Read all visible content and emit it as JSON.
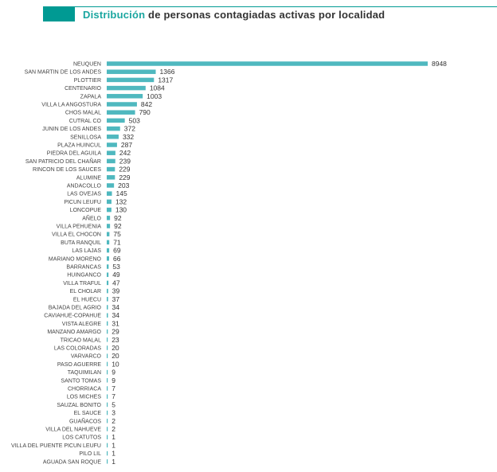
{
  "header": {
    "title_accent": "Distribución",
    "title_rest": " de personas contagiadas activas por localidad"
  },
  "colors": {
    "bar": "#4fb8bf",
    "accent": "#009a93"
  },
  "chart_data": {
    "type": "bar",
    "orientation": "horizontal",
    "title": "Distribución de personas contagiadas activas por localidad",
    "xlabel": "",
    "ylabel": "",
    "grid": false,
    "categories": [
      "NEUQUEN",
      "SAN MARTIN DE LOS ANDES",
      "PLOTTIER",
      "CENTENARIO",
      "ZAPALA",
      "VILLA LA ANGOSTURA",
      "CHOS MALAL",
      "CUTRAL CO",
      "JUNIN DE LOS ANDES",
      "SENILLOSA",
      "PLAZA HUINCUL",
      "PIEDRA DEL AGUILA",
      "SAN PATRICIO DEL CHAÑAR",
      "RINCON DE LOS SAUCES",
      "ALUMINE",
      "ANDACOLLO",
      "LAS OVEJAS",
      "PICUN LEUFU",
      "LONCOPUE",
      "AÑELO",
      "VILLA PEHUENIA",
      "VILLA EL CHOCON",
      "BUTA RANQUIL",
      "LAS LAJAS",
      "MARIANO MORENO",
      "BARRANCAS",
      "HUINGANCO",
      "VILLA TRAFUL",
      "EL CHOLAR",
      "EL HUECU",
      "BAJADA DEL AGRIO",
      "CAVIAHUE-COPAHUE",
      "VISTA ALEGRE",
      "MANZANO AMARGO",
      "TRICAO MALAL",
      "LAS COLORADAS",
      "VARVARCO",
      "PASO AGUERRE",
      "TAQUIMILAN",
      "SANTO TOMAS",
      "CHORRIACA",
      "LOS MICHES",
      "SAUZAL BONITO",
      "EL SAUCE",
      "GUAÑACOS",
      "VILLA DEL NAHUEVE",
      "LOS CATUTOS",
      "VILLA DEL PUENTE PICUN LEUFU",
      "PILO LIL",
      "AGUADA SAN ROQUE"
    ],
    "values": [
      8948,
      1366,
      1317,
      1084,
      1003,
      842,
      790,
      503,
      372,
      332,
      287,
      242,
      239,
      229,
      229,
      203,
      145,
      132,
      130,
      92,
      92,
      75,
      71,
      69,
      66,
      53,
      49,
      47,
      39,
      37,
      34,
      34,
      31,
      29,
      23,
      20,
      20,
      10,
      9,
      9,
      7,
      7,
      5,
      3,
      2,
      2,
      1,
      1,
      1,
      1
    ],
    "xlim": [
      0,
      8948
    ]
  }
}
